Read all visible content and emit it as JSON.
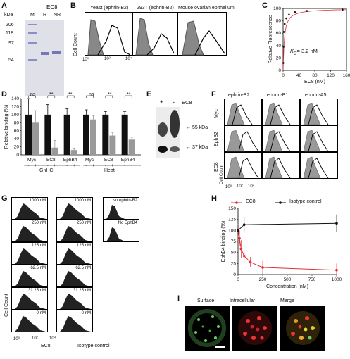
{
  "panels": {
    "A": {
      "letter": "A",
      "title": "EC8",
      "units": "kDa",
      "lanes": [
        "M",
        "R",
        "NR"
      ],
      "markers": [
        "206",
        "118",
        "97",
        "54"
      ]
    },
    "B": {
      "letter": "B",
      "titles": [
        "Yeast (ephrin-B2)",
        "293T (ephrin-B2)",
        "Mouse ovarian epithelium"
      ],
      "ylabel": "Cell Count",
      "xticks": [
        "10⁰",
        "10²",
        "10⁴"
      ]
    },
    "C": {
      "letter": "C",
      "annotation": "K",
      "annotation_sub": "D",
      "annotation_value": "= 3.2 nM"
    },
    "D": {
      "letter": "D",
      "ns1": "ns",
      "ss2": "**",
      "ss3": "**",
      "ns4": "ns",
      "ss5": "**",
      "ss6": "**",
      "group1": "GnHCl",
      "group2": "Heat",
      "signs": [
        "-",
        "+"
      ]
    },
    "E": {
      "letter": "E",
      "plus": "+",
      "minus": "-",
      "label": "EC8",
      "band1": "55 kDa",
      "band2": "37 kDa"
    },
    "F": {
      "letter": "F",
      "cols": [
        "ephrin-B2",
        "ephrin-B1",
        "ephrin-A5"
      ],
      "rows": [
        "Myc",
        "EphB2",
        "EC8"
      ],
      "ylabel": "Cell Count",
      "xticks": [
        "10⁰",
        "10²",
        "10⁴"
      ]
    },
    "G": {
      "letter": "G",
      "concs": [
        "1000 nM",
        "250 nM",
        "125 nM",
        "62.5 nM",
        "31.25 nM",
        "0 nM"
      ],
      "controls": [
        "No ephrin-B2",
        "No EphB4"
      ],
      "xlabel1": "EC8",
      "xlabel2": "Isotype control",
      "ylabel": "Cell Count",
      "xticks": [
        "10⁰",
        "10²",
        "10⁴"
      ]
    },
    "H": {
      "letter": "H",
      "legend1": "EC8",
      "legend2": "Isotype control"
    },
    "I": {
      "letter": "I",
      "titles": [
        "Surface",
        "Intracellular",
        "Merge"
      ]
    }
  },
  "chart_data": [
    {
      "type": "scatter",
      "panel": "C",
      "xlabel": "EC8 (nM)",
      "ylabel": "Relative Fluorescence",
      "xlim": [
        0,
        160
      ],
      "ylim": [
        0,
        100
      ],
      "xticks": [
        0,
        40,
        80,
        120,
        160
      ],
      "yticks": [
        0,
        20,
        40,
        60,
        80,
        100
      ],
      "x": [
        0.5,
        1,
        2,
        4,
        8,
        15,
        30,
        60,
        150
      ],
      "y": [
        12,
        38,
        62,
        75,
        84,
        90,
        94,
        96,
        98
      ]
    },
    {
      "type": "bar",
      "panel": "D",
      "ylabel": "Relative binding (%)",
      "ylim": [
        0,
        140
      ],
      "yticks": [
        0,
        20,
        40,
        60,
        80,
        100,
        120,
        140
      ],
      "categories": [
        "Myc",
        "EC8",
        "EphB4",
        "Myc",
        "EC8",
        "EphB4"
      ],
      "series": [
        {
          "name": "-",
          "values": [
            100,
            100,
            100,
            100,
            100,
            100
          ],
          "errors": [
            40,
            25,
            15,
            12,
            8,
            8
          ]
        },
        {
          "name": "+",
          "values": [
            80,
            18,
            12,
            88,
            48,
            38
          ],
          "errors": [
            30,
            18,
            5,
            10,
            8,
            6
          ]
        }
      ],
      "colors": [
        "#111111",
        "#999999"
      ]
    },
    {
      "type": "line",
      "panel": "H",
      "xlabel": "Concentration (nM)",
      "ylabel": "EphB4 binding (%)",
      "xlim": [
        0,
        1000
      ],
      "ylim": [
        0,
        150
      ],
      "xticks": [
        0,
        250,
        500,
        750,
        1000
      ],
      "yticks": [
        0,
        25,
        50,
        75,
        100,
        125,
        150
      ],
      "series": [
        {
          "name": "EC8",
          "color": "#e0303b",
          "x": [
            0,
            15,
            31.25,
            62.5,
            125,
            250,
            1000
          ],
          "y": [
            100,
            82,
            58,
            42,
            28,
            16,
            10
          ],
          "errors": [
            15,
            18,
            20,
            15,
            12,
            15,
            15
          ]
        },
        {
          "name": "Isotype control",
          "color": "#111111",
          "x": [
            0,
            62.5,
            1000
          ],
          "y": [
            100,
            113,
            116
          ],
          "errors": [
            12,
            18,
            20
          ]
        }
      ]
    }
  ]
}
